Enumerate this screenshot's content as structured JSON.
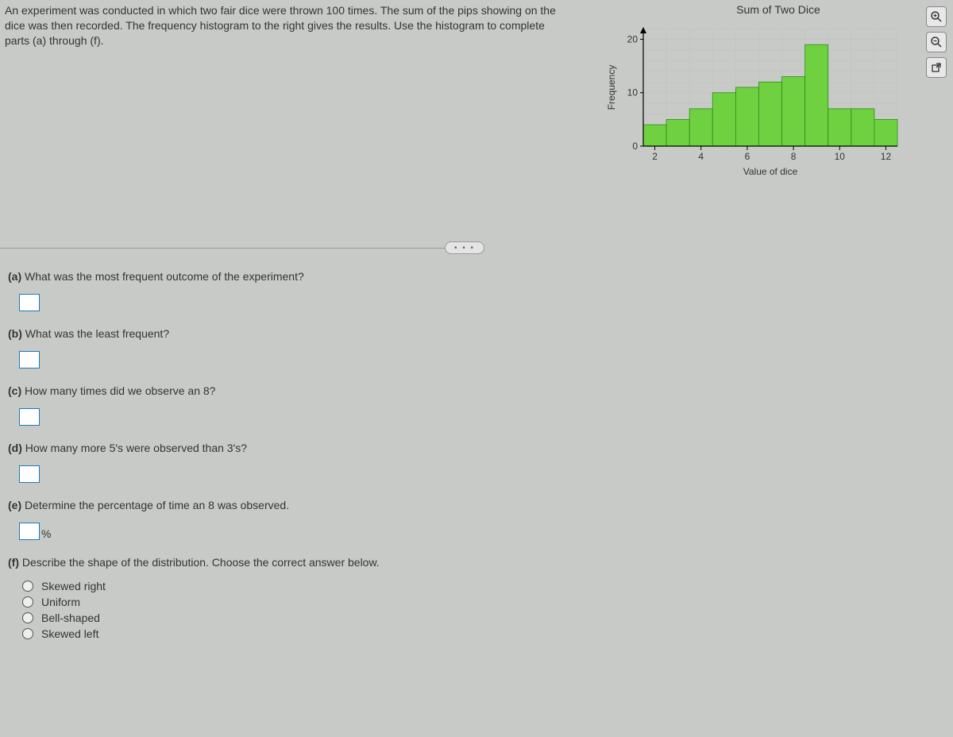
{
  "problem_text": "An experiment was conducted in which two fair dice were thrown 100 times. The sum of the pips showing on the dice was then recorded. The frequency histogram to the right gives the results. Use the histogram to complete parts (a) through (f).",
  "chart": {
    "type": "bar",
    "title": "Sum of Two Dice",
    "xlabel": "Value of dice",
    "ylabel": "Frequency",
    "categories": [
      2,
      3,
      4,
      5,
      6,
      7,
      8,
      9,
      10,
      11,
      12
    ],
    "values": [
      4,
      5,
      7,
      10,
      11,
      12,
      13,
      19,
      7,
      7,
      5
    ],
    "bar_color": "#6fd13f",
    "bar_border": "#2e8b1a",
    "background_color": "#c8cac8",
    "plot_bg": "#ffffff00",
    "grid_color": "#bfc3bf",
    "ylim": [
      0,
      22
    ],
    "yticks": [
      0,
      10,
      20
    ],
    "xticks": [
      2,
      4,
      6,
      8,
      10,
      12
    ],
    "label_fontsize": 12,
    "tick_fontsize": 12
  },
  "icons": [
    "zoom-in",
    "zoom-out",
    "open-external"
  ],
  "more_pill": "• • •",
  "questions": {
    "a": "What was the most frequent outcome of the experiment?",
    "b": "What was the least frequent?",
    "c": "How many times did we observe an 8?",
    "d": "How many more 5's were observed than 3's?",
    "e": "Determine the percentage of time an 8 was observed.",
    "e_suffix": "%",
    "f": "Describe the shape of the distribution. Choose the correct answer below.",
    "f_options": [
      "Skewed right",
      "Uniform",
      "Bell-shaped",
      "Skewed left"
    ]
  }
}
